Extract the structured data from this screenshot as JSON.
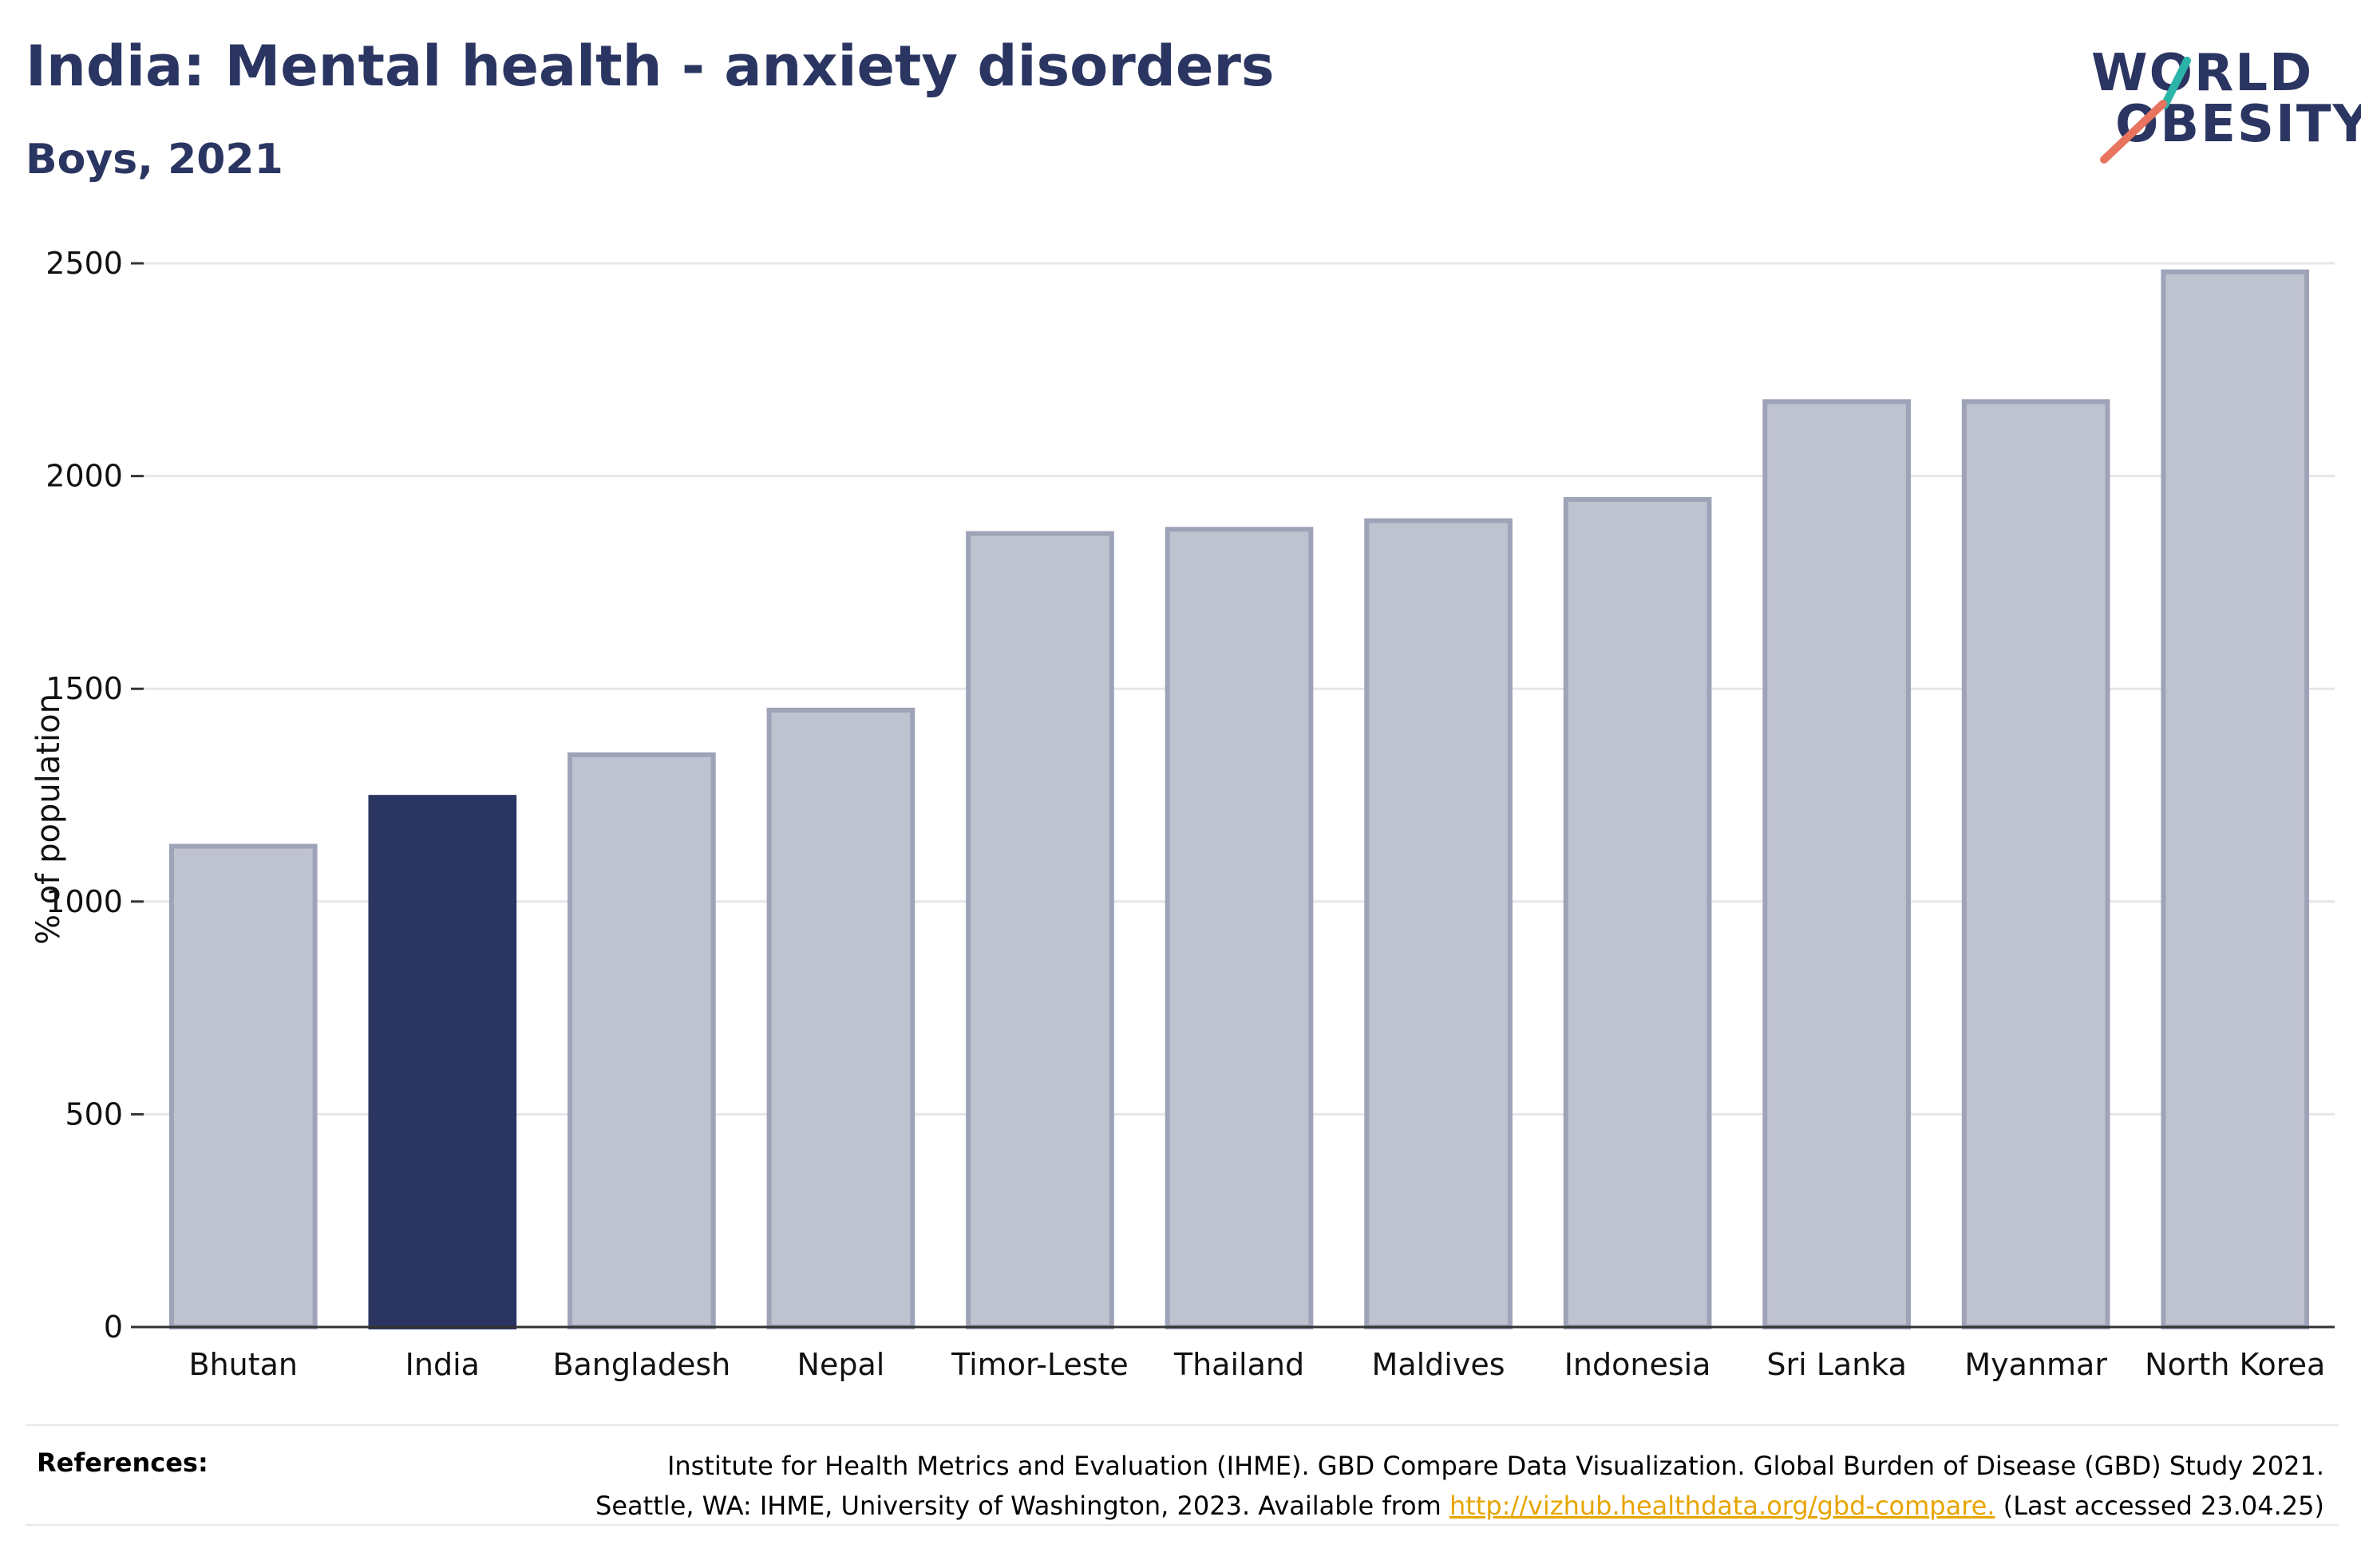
{
  "title": "India: Mental health - anxiety disorders",
  "subtitle": "Boys, 2021",
  "logo": {
    "line1": "WORLD",
    "line2": "OBESITY",
    "accent_teal": "#2bb5a8",
    "accent_coral": "#e8735f"
  },
  "colors": {
    "highlight": "#2b3561",
    "bar": "#bfc2cf",
    "bar_border": "#9ea3b8",
    "grid": "#e6e6ea",
    "text_dark": "#2b3561"
  },
  "chart_data": {
    "type": "bar",
    "title": "India: Mental health - anxiety disorders",
    "subtitle": "Boys, 2021",
    "categories": [
      "Bhutan",
      "India",
      "Bangladesh",
      "Nepal",
      "Timor-Leste",
      "Thailand",
      "Maldives",
      "Indonesia",
      "Sri Lanka",
      "Myanmar",
      "North Korea"
    ],
    "values": [
      1130,
      1245,
      1345,
      1450,
      1865,
      1875,
      1895,
      1945,
      2175,
      2175,
      2480
    ],
    "highlight": "India",
    "ylabel": "% of population",
    "xlabel": "",
    "ylim": [
      0,
      2500
    ],
    "yticks": [
      0,
      500,
      1000,
      1500,
      2000,
      2500
    ],
    "grid": true,
    "legend": "none"
  },
  "references": {
    "label": "References:",
    "line1": "Institute for Health Metrics and Evaluation (IHME). GBD Compare Data Visualization. Global Burden of Disease (GBD) Study 2021.",
    "line2_prefix": "Seattle, WA: IHME, University of Washington, 2023. Available from ",
    "link": "http://vizhub.healthdata.org/gbd-compare.",
    "line2_suffix": " (Last accessed 23.04.25)"
  }
}
